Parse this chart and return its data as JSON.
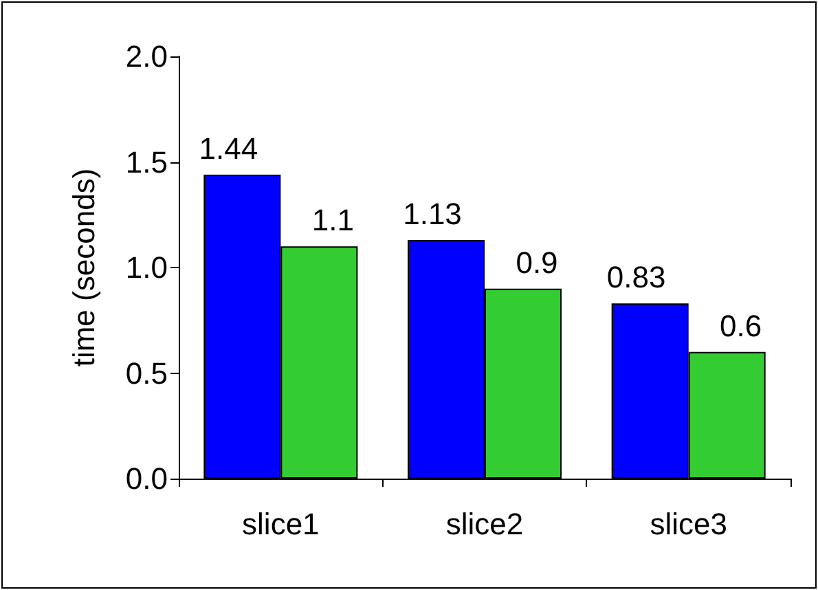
{
  "chart_data": {
    "type": "bar",
    "ylabel": "time (seconds)",
    "categories": [
      "slice1",
      "slice2",
      "slice3"
    ],
    "series": [
      {
        "color": "#0000ff",
        "values": [
          1.44,
          1.13,
          0.83
        ]
      },
      {
        "color": "#33cc33",
        "values": [
          1.1,
          0.9,
          0.6
        ]
      }
    ],
    "ylim": [
      0,
      2
    ],
    "yticks": [
      {
        "value": 0,
        "label": "0.0"
      },
      {
        "value": 0.5,
        "label": "0.5"
      },
      {
        "value": 1,
        "label": "1.0"
      },
      {
        "value": 1.5,
        "label": "1.5"
      },
      {
        "value": 2,
        "label": "2.0"
      }
    ],
    "grid": false,
    "data_labels": true
  }
}
